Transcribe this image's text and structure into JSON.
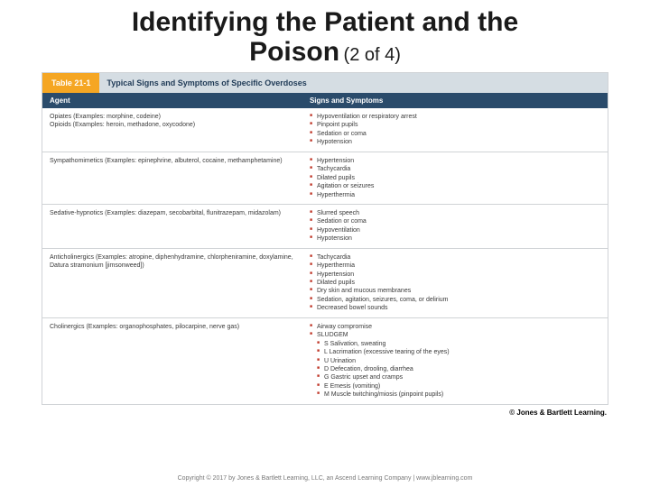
{
  "title": {
    "line1": "Identifying the Patient and the",
    "line2_bold": "Poison",
    "line2_sub": "(2 of 4)"
  },
  "table": {
    "tag": "Table 21-1",
    "caption": "Typical Signs and Symptoms of Specific Overdoses",
    "columns": {
      "agent": "Agent",
      "signs": "Signs and Symptoms"
    },
    "rows": [
      {
        "agent": "Opiates (Examples: morphine, codeine)\nOpioids (Examples: heroin, methadone, oxycodone)",
        "signs": [
          "Hypoventilation or respiratory arrest",
          "Pinpoint pupils",
          "Sedation or coma",
          "Hypotension"
        ]
      },
      {
        "agent": "Sympathomimetics (Examples: epinephrine, albuterol, cocaine, methamphetamine)",
        "signs": [
          "Hypertension",
          "Tachycardia",
          "Dilated pupils",
          "Agitation or seizures",
          "Hyperthermia"
        ]
      },
      {
        "agent": "Sedative-hypnotics (Examples: diazepam, secobarbital, flunitrazepam, midazolam)",
        "signs": [
          "Slurred speech",
          "Sedation or coma",
          "Hypoventilation",
          "Hypotension"
        ]
      },
      {
        "agent": "Anticholinergics (Examples: atropine, diphenhydramine, chlorpheniramine, doxylamine, Datura stramonium [jimsonweed])",
        "signs": [
          "Tachycardia",
          "Hyperthermia",
          "Hypertension",
          "Dilated pupils",
          "Dry skin and mucous membranes",
          "Sedation, agitation, seizures, coma, or delirium",
          "Decreased bowel sounds"
        ]
      },
      {
        "agent": "Cholinergics (Examples: organophosphates, pilocarpine, nerve gas)",
        "signs": [
          "Airway compromise",
          "SLUDGEM"
        ],
        "sub": [
          "S Salivation, sweating",
          "L Lacrimation (excessive tearing of the eyes)",
          "U Urination",
          "D Defecation, drooling, diarrhea",
          "G Gastric upset and cramps",
          "E Emesis (vomiting)",
          "M Muscle twitching/miosis (pinpoint pupils)"
        ]
      }
    ]
  },
  "credit": "© Jones & Bartlett Learning.",
  "footer": "Copyright © 2017 by Jones & Bartlett Learning, LLC, an Ascend Learning Company | www.jblearning.com"
}
